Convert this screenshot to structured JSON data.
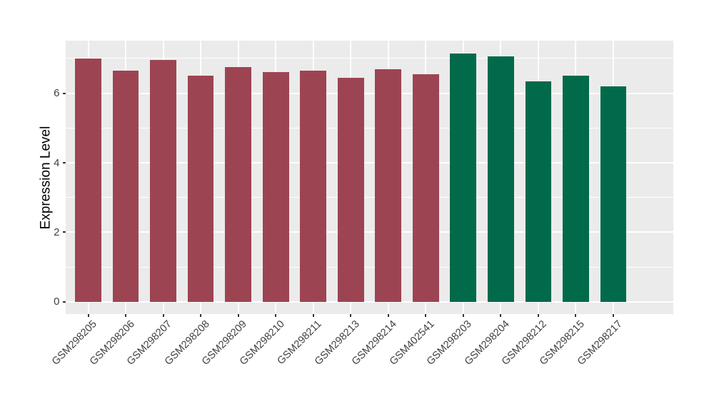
{
  "chart_data": {
    "type": "bar",
    "title": "",
    "xlabel": "",
    "ylabel": "Expression Level",
    "categories": [
      "GSM298205",
      "GSM298206",
      "GSM298207",
      "GSM298208",
      "GSM298209",
      "GSM298210",
      "GSM298211",
      "GSM298213",
      "GSM298214",
      "GSM402541",
      "GSM298203",
      "GSM298204",
      "GSM298212",
      "GSM298215",
      "GSM298217"
    ],
    "values": [
      7.0,
      6.65,
      6.95,
      6.5,
      6.75,
      6.6,
      6.65,
      6.45,
      6.7,
      6.55,
      7.15,
      7.05,
      6.35,
      6.5,
      6.2
    ],
    "bar_colors": [
      "#9D4452",
      "#9D4452",
      "#9D4452",
      "#9D4452",
      "#9D4452",
      "#9D4452",
      "#9D4452",
      "#9D4452",
      "#9D4452",
      "#9D4452",
      "#016A4B",
      "#016A4B",
      "#016A4B",
      "#016A4B",
      "#016A4B"
    ],
    "color_groups": [
      {
        "color": "#9D4452",
        "count": 10
      },
      {
        "color": "#016A4B",
        "count": 5
      }
    ],
    "y_ticks": [
      0,
      2,
      4,
      6
    ],
    "y_minor_gridlines": [
      1,
      3,
      5,
      7
    ],
    "ylim": [
      -0.36,
      7.56
    ],
    "x_tick_angle_deg": 45,
    "legend_position": "none",
    "grid": true,
    "panel_background": "#EBEBEB",
    "gridline_color": "#FFFFFF",
    "tick_label_color": "#404040",
    "axis_title_color": "#000000"
  }
}
